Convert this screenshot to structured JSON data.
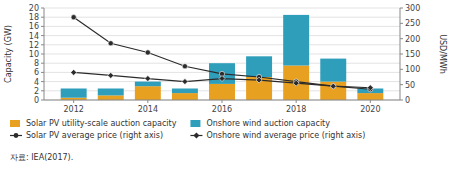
{
  "chart_data": {
    "type": "bar",
    "stacked": true,
    "x": [
      2012,
      2013,
      2014,
      2015,
      2016,
      2017,
      2018,
      2019,
      2020
    ],
    "xlim": [
      2011.2,
      2020.8
    ],
    "xticks": [
      2012,
      2014,
      2016,
      2018,
      2020
    ],
    "y_label": "Capacity (GW)",
    "y2_label": "USD/MWh",
    "ylim": [
      0,
      20
    ],
    "yticks": [
      0,
      2,
      4,
      6,
      8,
      10,
      12,
      14,
      16,
      18,
      20
    ],
    "y2lim": [
      0,
      300
    ],
    "y2ticks": [
      0,
      50,
      100,
      150,
      200,
      250,
      300
    ],
    "grid": true,
    "legend": "bottom",
    "annotations": [
      "자료: IEA(2017)."
    ],
    "series": [
      {
        "name": "Solar PV utility-scale auction capacity",
        "type": "bar",
        "color": "#E8A020",
        "values": [
          0.5,
          1.0,
          3.0,
          1.5,
          3.5,
          5.0,
          7.5,
          4.0,
          1.5
        ]
      },
      {
        "name": "Onshore wind auction capacity",
        "type": "bar",
        "color": "#2E9EBB",
        "values": [
          2.0,
          1.5,
          1.0,
          1.0,
          4.5,
          4.5,
          11.0,
          5.0,
          1.0
        ]
      },
      {
        "name": "Solar PV average price (right axis)",
        "type": "line",
        "axis": "y2",
        "color": "#2B2B2B",
        "marker": "circle",
        "values": [
          270,
          185,
          155,
          110,
          85,
          75,
          60,
          45,
          35
        ]
      },
      {
        "name": "Onshore wind average price (right axis)",
        "type": "line",
        "axis": "y2",
        "color": "#2B2B2B",
        "marker": "diamond",
        "values": [
          90,
          80,
          70,
          60,
          70,
          65,
          55,
          45,
          40
        ]
      }
    ]
  }
}
